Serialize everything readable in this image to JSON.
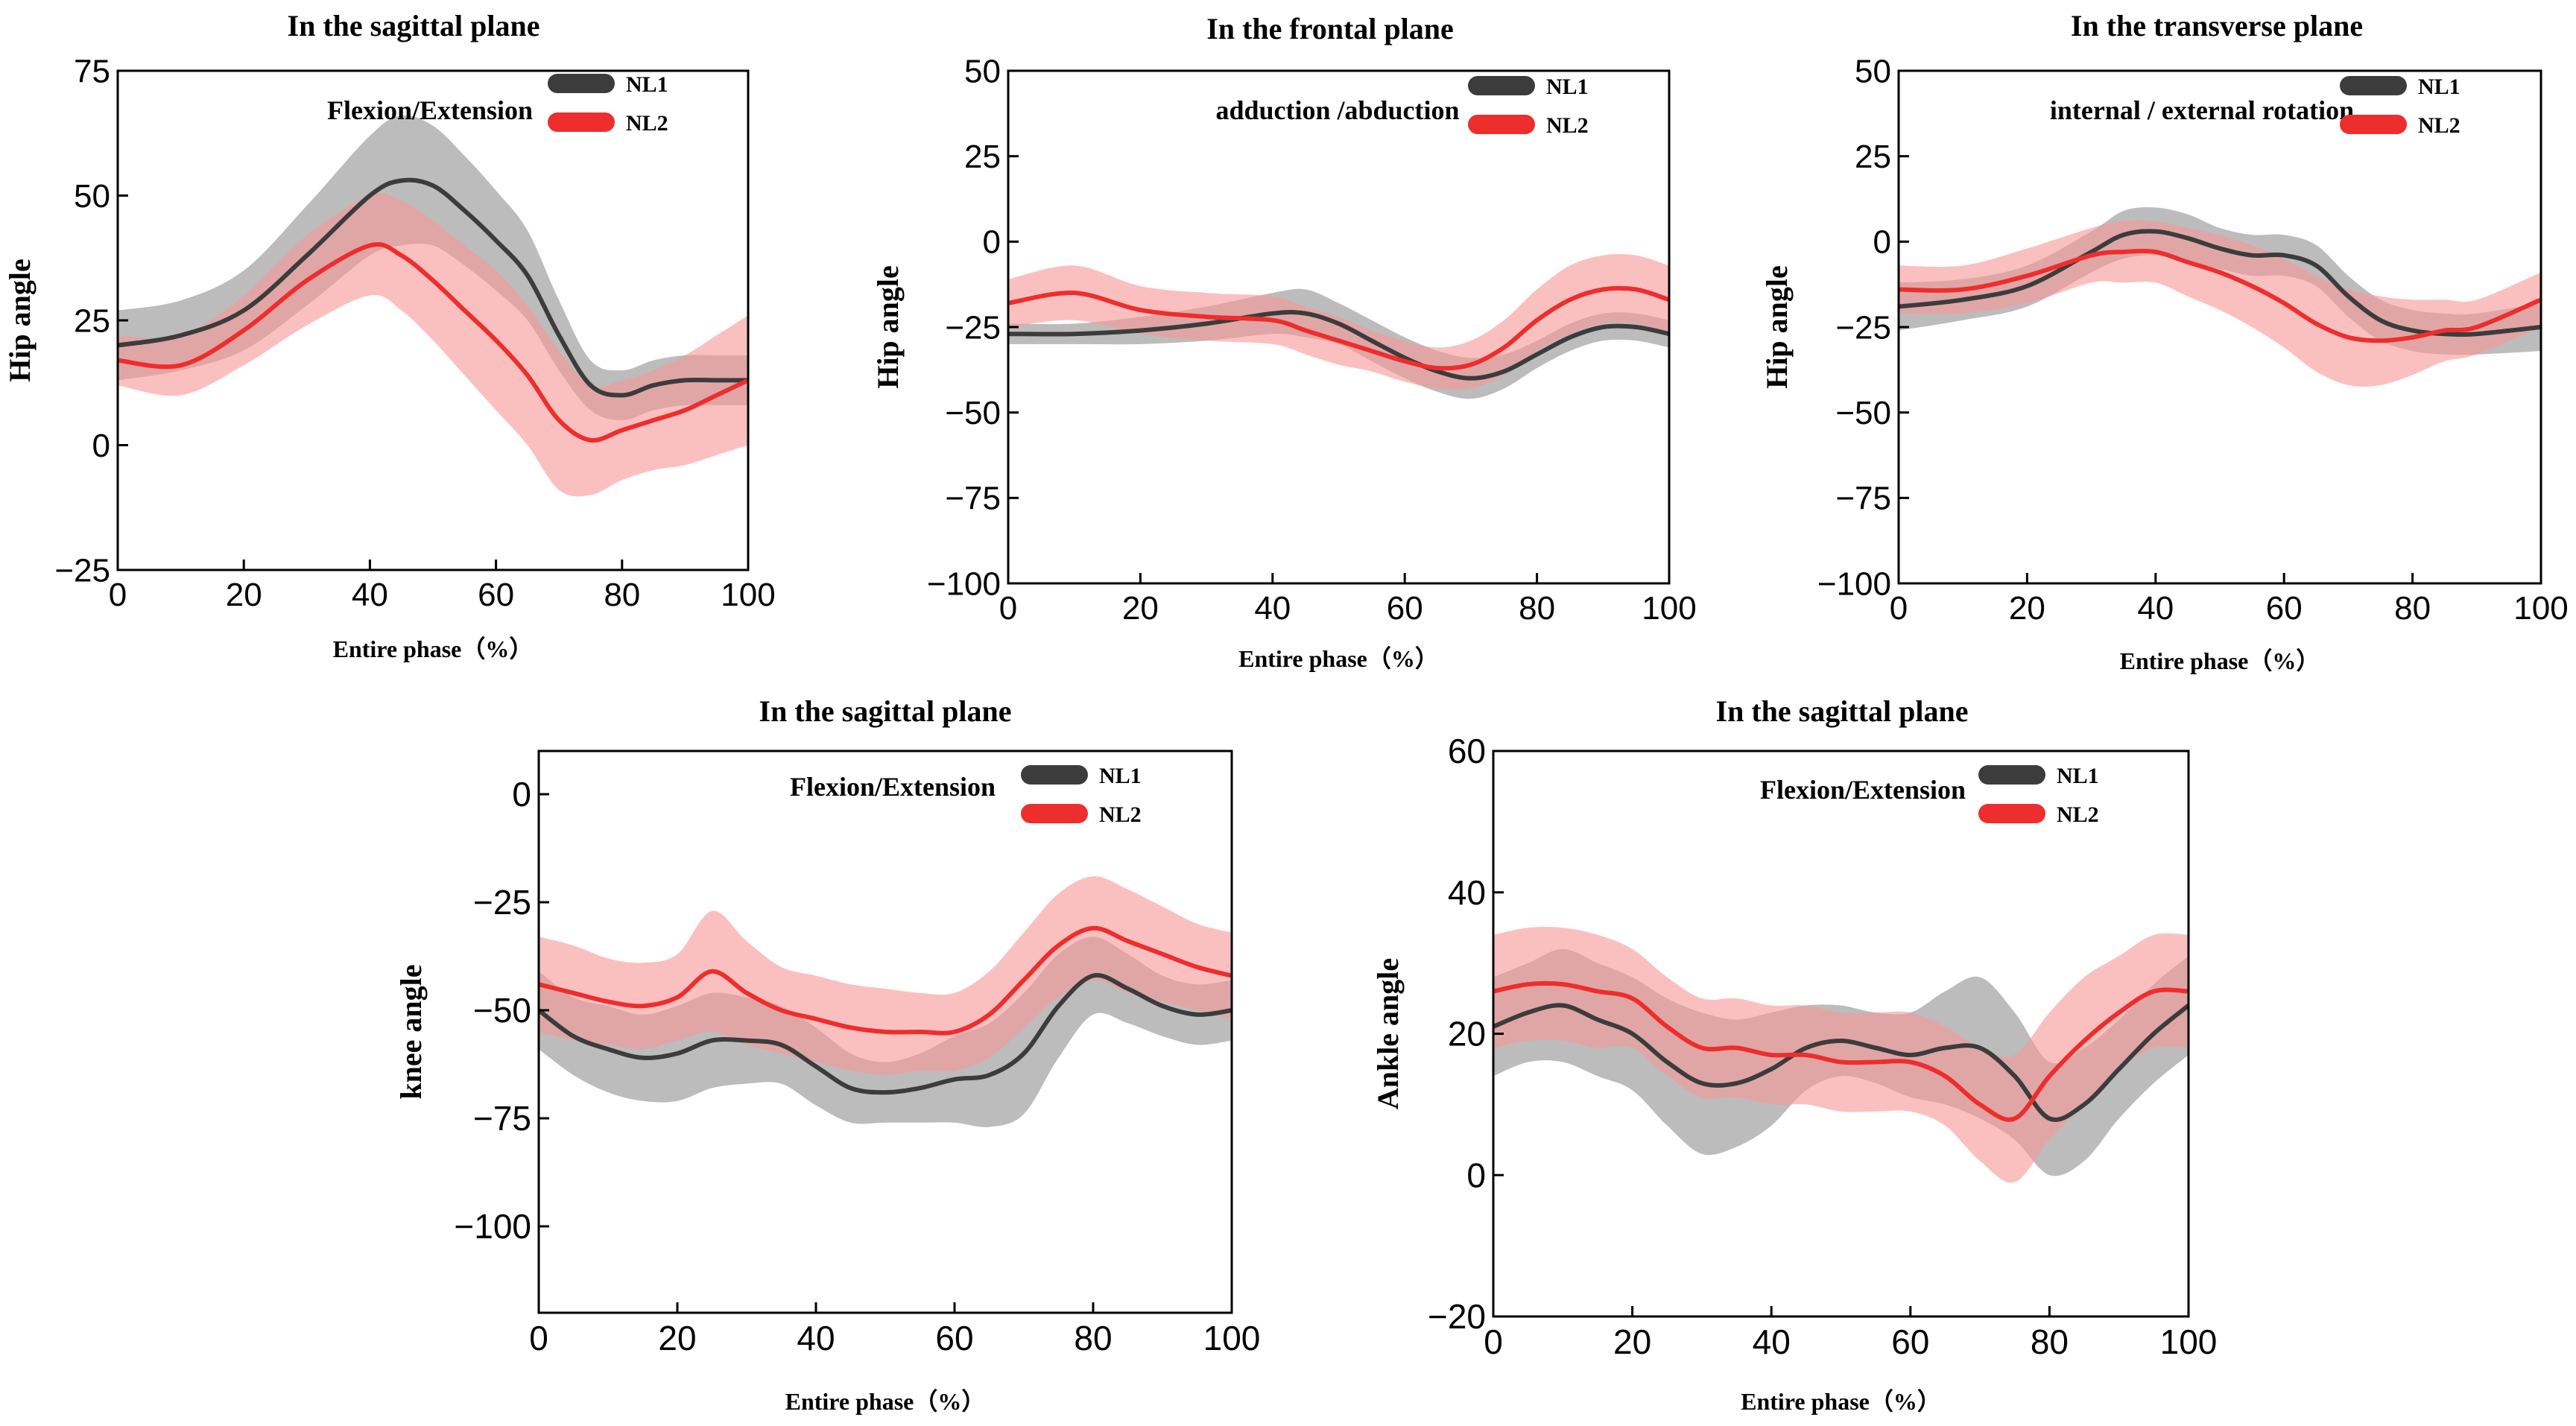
{
  "chart_data": [
    {
      "type": "line",
      "title": "In the sagittal plane",
      "annotation": "Flexion/Extension",
      "xlabel": "Entire phase（%）",
      "ylabel": "Hip angle",
      "xlim": [
        0,
        100
      ],
      "ylim": [
        -25,
        75
      ],
      "xticks": [
        "0",
        "20",
        "40",
        "60",
        "80",
        "100"
      ],
      "yticks": [
        "75",
        "50",
        "25",
        "0",
        "−25"
      ],
      "ytick_values": [
        75,
        50,
        25,
        0,
        -25
      ],
      "legend": [
        "NL1",
        "NL2"
      ],
      "series": [
        {
          "name": "NL1",
          "color": "#3c3c3c",
          "band_color": "#b0b0b0",
          "x": [
            0,
            10,
            20,
            30,
            40,
            45,
            50,
            55,
            60,
            65,
            70,
            75,
            80,
            85,
            90,
            95,
            100
          ],
          "mean": [
            20,
            22,
            27,
            38,
            50,
            53,
            52,
            47,
            41,
            34,
            22,
            12,
            10,
            12,
            13,
            13,
            13
          ],
          "sd": [
            7,
            7,
            8,
            10,
            12,
            13,
            12,
            11,
            10,
            9,
            7,
            5,
            5,
            5,
            5,
            5,
            5
          ]
        },
        {
          "name": "NL2",
          "color": "#ee2d2d",
          "band_color": "#f79a9a",
          "x": [
            0,
            10,
            20,
            30,
            40,
            45,
            50,
            55,
            60,
            65,
            70,
            75,
            80,
            85,
            90,
            95,
            100
          ],
          "mean": [
            17,
            16,
            23,
            33,
            40,
            38,
            33,
            27,
            21,
            14,
            5,
            1,
            3,
            5,
            7,
            10,
            13
          ],
          "sd": [
            5,
            6,
            7,
            9,
            10,
            11,
            12,
            13,
            14,
            14,
            14,
            11,
            10,
            10,
            11,
            12,
            13
          ]
        }
      ]
    },
    {
      "type": "line",
      "title": "In the frontal plane",
      "annotation": "adduction /abduction",
      "xlabel": "Entire phase（%）",
      "ylabel": "Hip angle",
      "xlim": [
        0,
        100
      ],
      "ylim": [
        -100,
        50
      ],
      "xticks": [
        "0",
        "20",
        "40",
        "60",
        "80",
        "100"
      ],
      "yticks": [
        "50",
        "25",
        "0",
        "−25",
        "−50",
        "−75",
        "−100"
      ],
      "ytick_values": [
        50,
        25,
        0,
        -25,
        -50,
        -75,
        -100
      ],
      "legend": [
        "NL1",
        "NL2"
      ],
      "series": [
        {
          "name": "NL1",
          "color": "#3c3c3c",
          "band_color": "#b0b0b0",
          "x": [
            0,
            10,
            20,
            30,
            40,
            45,
            50,
            55,
            60,
            65,
            70,
            75,
            80,
            85,
            90,
            95,
            100
          ],
          "mean": [
            -27,
            -27,
            -26,
            -24,
            -21,
            -21,
            -24,
            -29,
            -34,
            -38,
            -40,
            -38,
            -33,
            -28,
            -25,
            -25,
            -27
          ],
          "sd": [
            3,
            3,
            4,
            5,
            6,
            7,
            6,
            6,
            6,
            6,
            6,
            5,
            4,
            4,
            4,
            4,
            4
          ]
        },
        {
          "name": "NL2",
          "color": "#ee2d2d",
          "band_color": "#f79a9a",
          "x": [
            0,
            10,
            20,
            30,
            40,
            45,
            50,
            55,
            60,
            65,
            70,
            75,
            80,
            85,
            90,
            95,
            100
          ],
          "mean": [
            -18,
            -15,
            -20,
            -22,
            -23,
            -26,
            -29,
            -32,
            -35,
            -37,
            -36,
            -31,
            -23,
            -17,
            -14,
            -14,
            -17
          ],
          "sd": [
            7,
            8,
            7,
            7,
            7,
            7,
            7,
            6,
            6,
            6,
            7,
            8,
            9,
            10,
            10,
            10,
            10
          ]
        }
      ]
    },
    {
      "type": "line",
      "title": "In the transverse plane",
      "annotation": "internal / external rotation",
      "xlabel": "Entire phase（%）",
      "ylabel": "Hip angle",
      "xlim": [
        0,
        100
      ],
      "ylim": [
        -100,
        50
      ],
      "xticks": [
        "0",
        "20",
        "40",
        "60",
        "80",
        "100"
      ],
      "yticks": [
        "50",
        "25",
        "0",
        "−25",
        "−50",
        "−75",
        "−100"
      ],
      "ytick_values": [
        50,
        25,
        0,
        -25,
        -50,
        -75,
        -100
      ],
      "legend": [
        "NL1",
        "NL2"
      ],
      "series": [
        {
          "name": "NL1",
          "color": "#3c3c3c",
          "band_color": "#b0b0b0",
          "x": [
            0,
            10,
            20,
            30,
            35,
            40,
            45,
            50,
            55,
            60,
            65,
            70,
            75,
            80,
            85,
            90,
            100
          ],
          "mean": [
            -19,
            -17,
            -13,
            -3,
            2,
            3,
            1,
            -2,
            -4,
            -4,
            -7,
            -16,
            -23,
            -26,
            -27,
            -27,
            -25
          ],
          "sd": [
            7,
            6,
            6,
            6,
            7,
            7,
            7,
            6,
            6,
            6,
            6,
            6,
            6,
            6,
            6,
            6,
            7
          ]
        },
        {
          "name": "NL2",
          "color": "#ee2d2d",
          "band_color": "#f79a9a",
          "x": [
            0,
            10,
            20,
            30,
            35,
            40,
            45,
            50,
            55,
            60,
            65,
            70,
            75,
            80,
            85,
            90,
            100
          ],
          "mean": [
            -14,
            -14,
            -10,
            -4,
            -3,
            -3,
            -6,
            -9,
            -13,
            -18,
            -24,
            -28,
            -29,
            -28,
            -26,
            -25,
            -17
          ],
          "sd": [
            7,
            7,
            8,
            8,
            9,
            9,
            10,
            11,
            12,
            13,
            14,
            14,
            13,
            11,
            9,
            8,
            8
          ]
        }
      ]
    },
    {
      "type": "line",
      "title": "In the sagittal plane",
      "annotation": "Flexion/Extension",
      "xlabel": "Entire phase（%）",
      "ylabel": "knee angle",
      "xlim": [
        0,
        100
      ],
      "ylim": [
        -120,
        10
      ],
      "xticks": [
        "0",
        "20",
        "40",
        "60",
        "80",
        "100"
      ],
      "yticks": [
        "0",
        "−25",
        "−50",
        "−75",
        "−100"
      ],
      "ytick_values": [
        0,
        -25,
        -50,
        -75,
        -100
      ],
      "legend": [
        "NL1",
        "NL2"
      ],
      "series": [
        {
          "name": "NL1",
          "color": "#3c3c3c",
          "band_color": "#b0b0b0",
          "x": [
            0,
            5,
            10,
            15,
            20,
            25,
            30,
            35,
            40,
            45,
            50,
            55,
            60,
            65,
            70,
            75,
            80,
            85,
            90,
            95,
            100
          ],
          "mean": [
            -50,
            -56,
            -59,
            -61,
            -60,
            -57,
            -57,
            -58,
            -63,
            -68,
            -69,
            -68,
            -66,
            -65,
            -60,
            -49,
            -42,
            -45,
            -49,
            -51,
            -50
          ],
          "sd": [
            9,
            9,
            10,
            10,
            11,
            11,
            10,
            9,
            9,
            8,
            7,
            8,
            10,
            12,
            14,
            12,
            9,
            8,
            7,
            7,
            7
          ]
        },
        {
          "name": "NL2",
          "color": "#ee2d2d",
          "band_color": "#f79a9a",
          "x": [
            0,
            5,
            10,
            15,
            20,
            25,
            30,
            35,
            40,
            45,
            50,
            55,
            60,
            65,
            70,
            75,
            80,
            85,
            90,
            95,
            100
          ],
          "mean": [
            -44,
            -46,
            -48,
            -49,
            -47,
            -41,
            -46,
            -50,
            -52,
            -54,
            -55,
            -55,
            -55,
            -51,
            -43,
            -35,
            -31,
            -34,
            -37,
            -40,
            -42
          ],
          "sd": [
            11,
            11,
            10,
            10,
            10,
            14,
            12,
            10,
            10,
            10,
            10,
            9,
            9,
            10,
            11,
            12,
            12,
            12,
            11,
            10,
            10
          ]
        }
      ]
    },
    {
      "type": "line",
      "title": "In the sagittal plane",
      "annotation": "Flexion/Extension",
      "xlabel": "Entire phase（%）",
      "ylabel": "Ankle angle",
      "xlim": [
        0,
        100
      ],
      "ylim": [
        -20,
        60
      ],
      "xticks": [
        "0",
        "20",
        "40",
        "60",
        "80",
        "100"
      ],
      "yticks": [
        "60",
        "40",
        "20",
        "0",
        "−20"
      ],
      "ytick_values": [
        60,
        40,
        20,
        0,
        -20
      ],
      "legend": [
        "NL1",
        "NL2"
      ],
      "series": [
        {
          "name": "NL1",
          "color": "#3c3c3c",
          "band_color": "#b0b0b0",
          "x": [
            0,
            5,
            10,
            15,
            20,
            25,
            30,
            35,
            40,
            45,
            50,
            55,
            60,
            65,
            70,
            75,
            80,
            85,
            90,
            95,
            100
          ],
          "mean": [
            21,
            23,
            24,
            22,
            20,
            16,
            13,
            13,
            15,
            18,
            19,
            18,
            17,
            18,
            18,
            14,
            8,
            10,
            15,
            20,
            24
          ],
          "sd": [
            7,
            7,
            8,
            8,
            8,
            9,
            10,
            9,
            8,
            6,
            5,
            5,
            6,
            8,
            10,
            9,
            8,
            8,
            7,
            7,
            7
          ]
        },
        {
          "name": "NL2",
          "color": "#ee2d2d",
          "band_color": "#f79a9a",
          "x": [
            0,
            5,
            10,
            15,
            20,
            25,
            30,
            35,
            40,
            45,
            50,
            55,
            60,
            65,
            70,
            75,
            80,
            85,
            90,
            95,
            100
          ],
          "mean": [
            26,
            27,
            27,
            26,
            25,
            21,
            18,
            18,
            17,
            17,
            16,
            16,
            16,
            14,
            10,
            8,
            14,
            19,
            23,
            26,
            26
          ],
          "sd": [
            8,
            8,
            8,
            8,
            7,
            7,
            7,
            7,
            7,
            7,
            7,
            7,
            7,
            7,
            8,
            9,
            9,
            9,
            8,
            8,
            8
          ]
        }
      ]
    }
  ]
}
